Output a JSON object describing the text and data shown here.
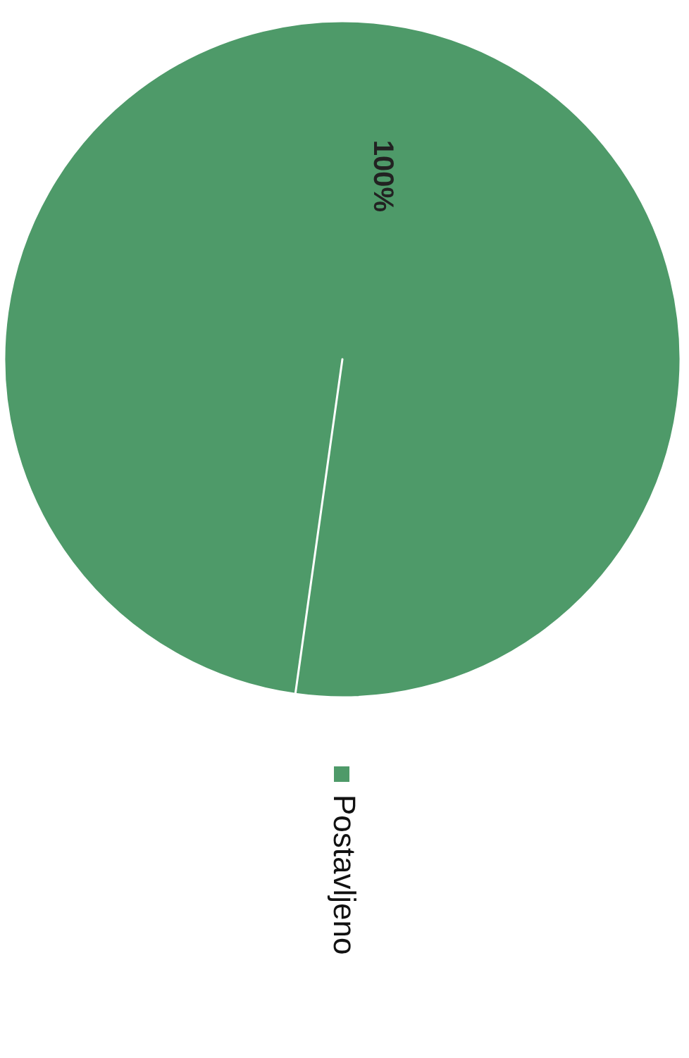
{
  "chart_data": {
    "type": "pie",
    "categories": [
      "Postavljeno"
    ],
    "values": [
      100
    ],
    "value_labels": [
      "100%"
    ],
    "colors": [
      "#4e9a69"
    ],
    "legend": "bottom"
  }
}
